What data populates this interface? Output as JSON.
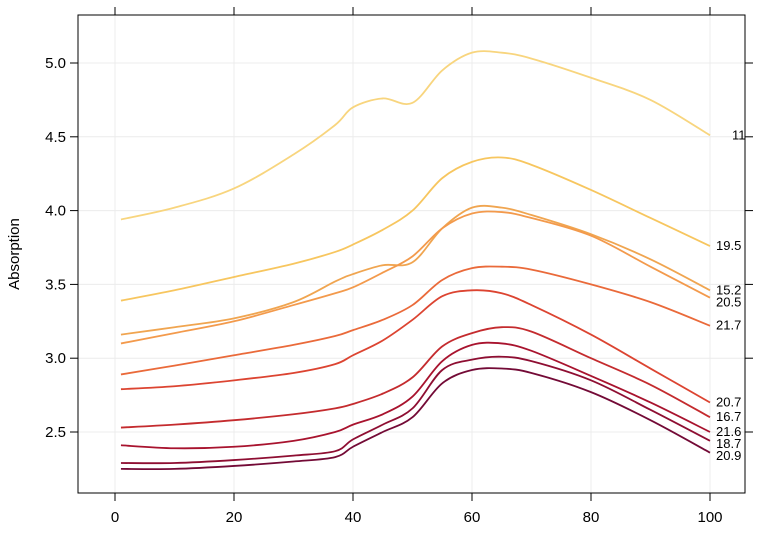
{
  "chart_data": {
    "type": "line",
    "title": "",
    "xlabel": "",
    "ylabel": "Absorption",
    "xlim": [
      -6,
      106
    ],
    "ylim": [
      2.1,
      5.3
    ],
    "grid": true,
    "xticks": [
      0,
      20,
      40,
      60,
      80,
      100
    ],
    "yticks": [
      2.5,
      3.0,
      3.5,
      4.0,
      4.5,
      5.0
    ],
    "ytick_labels": [
      "2.5",
      "3.0",
      "3.5",
      "4.0",
      "4.5",
      "5.0"
    ],
    "xtick_labels": [
      "0",
      "20",
      "40",
      "60",
      "80",
      "100"
    ],
    "x": [
      1,
      10,
      20,
      30,
      37,
      40,
      45,
      50,
      55,
      60,
      65,
      70,
      80,
      90,
      100
    ],
    "series": [
      {
        "name": "11",
        "color": "#F8D57E",
        "values": [
          3.94,
          4.02,
          4.15,
          4.38,
          4.58,
          4.7,
          4.76,
          4.73,
          4.95,
          5.07,
          5.07,
          5.03,
          4.9,
          4.75,
          4.51
        ]
      },
      {
        "name": "19.5",
        "color": "#F7C65F",
        "values": [
          3.39,
          3.46,
          3.55,
          3.64,
          3.72,
          3.77,
          3.87,
          4.0,
          4.22,
          4.33,
          4.36,
          4.31,
          4.14,
          3.95,
          3.76
        ]
      },
      {
        "name": "15.2",
        "color": "#F0A550",
        "values": [
          3.16,
          3.21,
          3.27,
          3.38,
          3.52,
          3.57,
          3.63,
          3.65,
          3.88,
          4.02,
          4.02,
          3.97,
          3.84,
          3.67,
          3.46
        ]
      },
      {
        "name": "20.5",
        "color": "#F39A4C",
        "values": [
          3.1,
          3.17,
          3.25,
          3.36,
          3.44,
          3.48,
          3.58,
          3.69,
          3.88,
          3.98,
          3.99,
          3.95,
          3.83,
          3.62,
          3.41
        ]
      },
      {
        "name": "21.7",
        "color": "#EA6A3A",
        "values": [
          2.89,
          2.95,
          3.02,
          3.09,
          3.15,
          3.19,
          3.26,
          3.36,
          3.53,
          3.61,
          3.62,
          3.6,
          3.5,
          3.38,
          3.22
        ]
      },
      {
        "name": "20.7",
        "color": "#DC4431",
        "values": [
          2.79,
          2.81,
          2.85,
          2.9,
          2.96,
          3.02,
          3.12,
          3.26,
          3.42,
          3.46,
          3.44,
          3.36,
          3.16,
          2.93,
          2.7
        ]
      },
      {
        "name": "16.7",
        "color": "#C42B2E",
        "values": [
          2.53,
          2.55,
          2.58,
          2.62,
          2.66,
          2.69,
          2.76,
          2.87,
          3.08,
          3.17,
          3.21,
          3.18,
          3.0,
          2.82,
          2.6
        ]
      },
      {
        "name": "21.6",
        "color": "#A8132E",
        "values": [
          2.41,
          2.39,
          2.4,
          2.44,
          2.5,
          2.55,
          2.62,
          2.74,
          2.98,
          3.09,
          3.1,
          3.05,
          2.88,
          2.7,
          2.5
        ]
      },
      {
        "name": "18.7",
        "color": "#8E0E32",
        "values": [
          2.29,
          2.29,
          2.31,
          2.34,
          2.37,
          2.45,
          2.55,
          2.66,
          2.92,
          2.99,
          3.01,
          2.98,
          2.85,
          2.65,
          2.44
        ]
      },
      {
        "name": "20.9",
        "color": "#730A36",
        "values": [
          2.25,
          2.25,
          2.27,
          2.3,
          2.33,
          2.4,
          2.5,
          2.6,
          2.83,
          2.92,
          2.93,
          2.9,
          2.77,
          2.58,
          2.36
        ]
      }
    ],
    "end_labels": [
      "11",
      "19.5",
      "15.2",
      "20.5",
      "21.7",
      "20.7",
      "16.7",
      "21.6",
      "18.7",
      "20.9"
    ]
  }
}
